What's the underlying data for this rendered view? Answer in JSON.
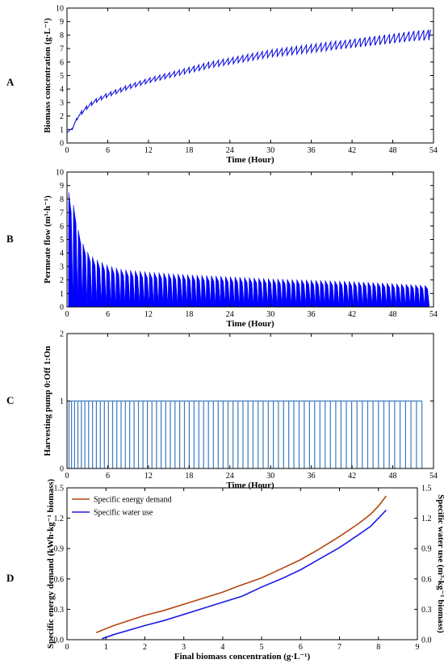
{
  "chart_data": [
    {
      "type": "line",
      "panel_label": "A",
      "xlabel": "Time (Hour)",
      "ylabel": "Biomass concentration (g·L⁻¹)",
      "xlim": [
        0,
        54
      ],
      "ylim": [
        0,
        10
      ],
      "xticks": [
        0,
        6,
        12,
        18,
        24,
        30,
        36,
        42,
        48,
        54
      ],
      "yticks": [
        0,
        1,
        2,
        3,
        4,
        5,
        6,
        7,
        8,
        9,
        10
      ],
      "series": [
        {
          "color": "#1010e0",
          "description": "sawtooth, periodic harvest drops",
          "envelope_time": [
            0,
            0.6,
            1,
            2,
            3,
            4,
            6,
            9,
            12,
            15,
            18,
            21,
            24,
            27,
            30,
            33,
            36,
            39,
            42,
            45,
            48,
            51,
            53.5
          ],
          "envelope_value": [
            0.9,
            0.9,
            1.5,
            2.3,
            2.8,
            3.2,
            3.7,
            4.3,
            4.8,
            5.2,
            5.6,
            6.0,
            6.3,
            6.6,
            6.9,
            7.1,
            7.3,
            7.5,
            7.7,
            7.9,
            8.1,
            8.3,
            8.4
          ]
        }
      ]
    },
    {
      "type": "area",
      "panel_label": "B",
      "xlabel": "Time (Hour)",
      "ylabel": "Permeate flow (m³·h⁻¹)",
      "xlim": [
        0,
        54
      ],
      "ylim": [
        0,
        10
      ],
      "xticks": [
        0,
        6,
        12,
        18,
        24,
        30,
        36,
        42,
        48,
        54
      ],
      "yticks": [
        0,
        1,
        2,
        3,
        4,
        5,
        6,
        7,
        8,
        9,
        10
      ],
      "series": [
        {
          "color": "#0000ff",
          "description": "filled flow, spiky, decaying peak",
          "envelope_time": [
            0.3,
            0.7,
            1,
            1.5,
            2,
            3,
            4,
            6,
            8,
            12,
            18,
            24,
            30,
            36,
            42,
            48,
            53
          ],
          "envelope_value": [
            8.5,
            9.2,
            7.2,
            6.0,
            5.0,
            4.1,
            3.6,
            3.1,
            2.8,
            2.6,
            2.4,
            2.25,
            2.1,
            2.0,
            1.9,
            1.75,
            1.6
          ]
        }
      ]
    },
    {
      "type": "line",
      "panel_label": "C",
      "xlabel": "Time (Hour)",
      "ylabel": "Harvesting pump 0:Off 1:On",
      "xlim": [
        0,
        54
      ],
      "ylim": [
        0,
        2
      ],
      "xticks": [
        0,
        6,
        12,
        18,
        24,
        30,
        36,
        42,
        48,
        54
      ],
      "yticks": [
        0,
        1,
        2
      ],
      "series": [
        {
          "color": "#3c7bbf",
          "description": "on/off pulses, interval widening over time",
          "on_value": 1,
          "first_pulse": 0.3,
          "last_pulse": 52.3,
          "pulse_count": 75
        }
      ]
    },
    {
      "type": "line",
      "panel_label": "D",
      "xlabel": "Final biomass concentration (g·L⁻¹)",
      "ylabel": "Specific energy demand (kWh·kg⁻¹ biomass)",
      "y2label": "Specific water use (m³·kg⁻¹ biomass)",
      "xlim": [
        0,
        9
      ],
      "ylim": [
        0,
        1.5
      ],
      "y2lim": [
        0,
        1.5
      ],
      "xticks": [
        0,
        1,
        2,
        3,
        4,
        5,
        6,
        7,
        8,
        9
      ],
      "yticks": [
        0,
        0.3,
        0.6,
        0.9,
        1.2,
        1.5
      ],
      "yticklabels": [
        "0.0",
        "0.3",
        "0.6",
        "0.9",
        "1.2",
        "1.5"
      ],
      "legend": "top-left",
      "series": [
        {
          "name": "Specific energy demand",
          "color": "#b5460e",
          "axis": "left",
          "x": [
            0.75,
            1.2,
            2.0,
            2.5,
            3.0,
            3.5,
            4.0,
            4.4,
            4.7,
            5.0,
            5.5,
            6.0,
            6.5,
            7.0,
            7.5,
            7.8,
            8.0,
            8.2
          ],
          "y": [
            0.07,
            0.14,
            0.24,
            0.29,
            0.35,
            0.41,
            0.47,
            0.53,
            0.57,
            0.61,
            0.7,
            0.79,
            0.9,
            1.02,
            1.15,
            1.24,
            1.32,
            1.42
          ]
        },
        {
          "name": "Specific water use",
          "color": "#1a1ae6",
          "axis": "right",
          "x": [
            0.9,
            1.2,
            2.0,
            2.5,
            3.0,
            3.5,
            4.0,
            4.5,
            5.0,
            5.5,
            6.0,
            6.5,
            7.0,
            7.5,
            7.8,
            8.0,
            8.2
          ],
          "y": [
            0.01,
            0.05,
            0.14,
            0.19,
            0.25,
            0.31,
            0.37,
            0.43,
            0.52,
            0.6,
            0.69,
            0.8,
            0.91,
            1.04,
            1.12,
            1.2,
            1.28
          ]
        }
      ]
    }
  ]
}
